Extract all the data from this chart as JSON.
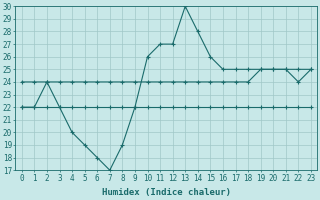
{
  "x": [
    0,
    1,
    2,
    3,
    4,
    5,
    6,
    7,
    8,
    9,
    10,
    11,
    12,
    13,
    14,
    15,
    16,
    17,
    18,
    19,
    20,
    21,
    22,
    23
  ],
  "line1": [
    22,
    22,
    24,
    22,
    20,
    19,
    18,
    17,
    19,
    22,
    26,
    27,
    27,
    30,
    28,
    26,
    25,
    25,
    25,
    25,
    25,
    25,
    24,
    25
  ],
  "line2": [
    22,
    22,
    22,
    22,
    22,
    22,
    22,
    22,
    22,
    22,
    22,
    22,
    22,
    22,
    22,
    22,
    22,
    22,
    22,
    22,
    22,
    22,
    22,
    22
  ],
  "line3": [
    24,
    24,
    24,
    24,
    24,
    24,
    24,
    24,
    24,
    24,
    24,
    24,
    24,
    24,
    24,
    24,
    24,
    24,
    24,
    25,
    25,
    25,
    25,
    25
  ],
  "line_color": "#1a6b6b",
  "bg_color": "#c8e8e8",
  "grid_color": "#a0c8c8",
  "xlabel": "Humidex (Indice chaleur)",
  "ylim": [
    17,
    30
  ],
  "xlim": [
    -0.5,
    23.5
  ],
  "yticks": [
    17,
    18,
    19,
    20,
    21,
    22,
    23,
    24,
    25,
    26,
    27,
    28,
    29,
    30
  ],
  "xticks": [
    0,
    1,
    2,
    3,
    4,
    5,
    6,
    7,
    8,
    9,
    10,
    11,
    12,
    13,
    14,
    15,
    16,
    17,
    18,
    19,
    20,
    21,
    22,
    23
  ],
  "marker": "+",
  "marker_size": 3,
  "line_width": 0.8,
  "tick_font_size": 5.5,
  "label_font_size": 6.5
}
